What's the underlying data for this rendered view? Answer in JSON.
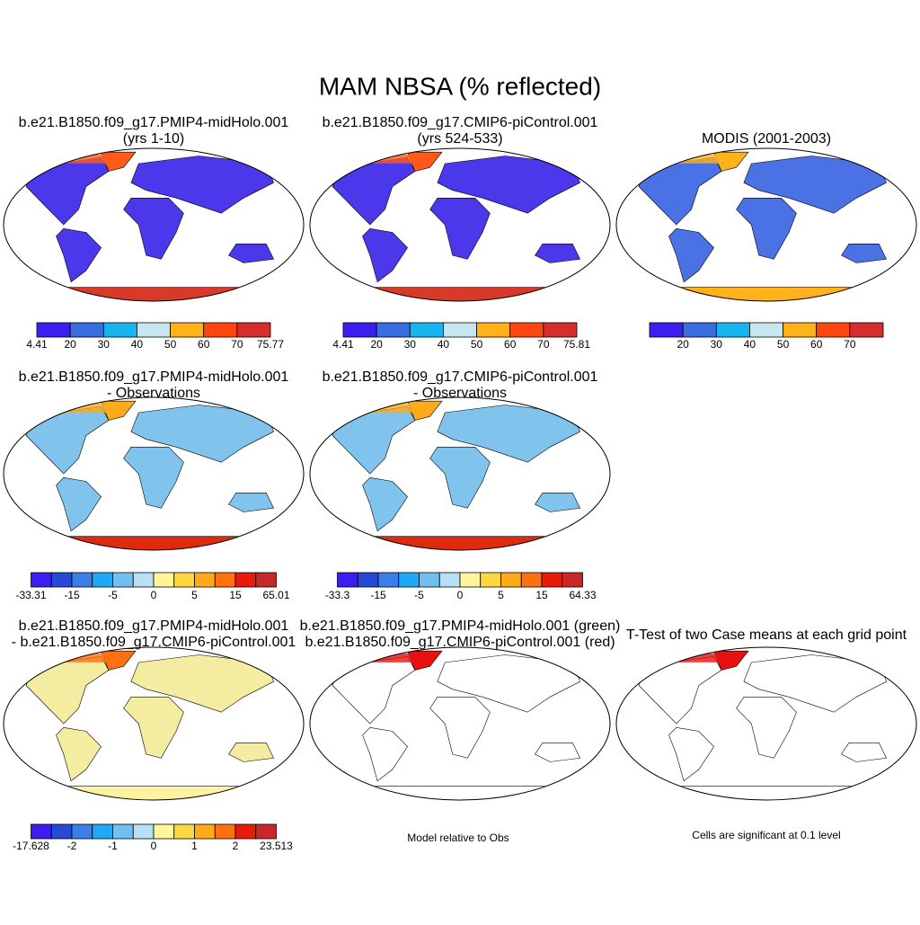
{
  "title": "MAM NBSA (% reflected)",
  "panels": [
    {
      "title": [
        "b.e21.B1850.f09_g17.PMIP4-midHolo.001",
        "(yrs 1-10)"
      ],
      "colorbar": {
        "colors": [
          "#3a1ff0",
          "#3a6ee0",
          "#18b4f0",
          "#c8e6f2",
          "#ffb21a",
          "#ff4510",
          "#d62d2d"
        ],
        "labels": [
          "4.41",
          "20",
          "30",
          "40",
          "50",
          "60",
          "70",
          "75.77"
        ]
      }
    },
    {
      "title": [
        "b.e21.B1850.f09_g17.CMIP6-piControl.001",
        "(yrs 524-533)"
      ],
      "colorbar": {
        "colors": [
          "#3a1ff0",
          "#3a6ee0",
          "#18b4f0",
          "#c8e6f2",
          "#ffb21a",
          "#ff4510",
          "#d62d2d"
        ],
        "labels": [
          "4.41",
          "20",
          "30",
          "40",
          "50",
          "60",
          "70",
          "75.81"
        ]
      }
    },
    {
      "title": [
        "MODIS (2001-2003)"
      ],
      "colorbar": {
        "colors": [
          "#3a1ff0",
          "#3a6ee0",
          "#18b4f0",
          "#c8e6f2",
          "#ffb21a",
          "#ff4510",
          "#d62d2d"
        ],
        "labels": [
          null,
          "20",
          "30",
          "40",
          "50",
          "60",
          "70",
          null
        ]
      }
    },
    {
      "title": [
        "b.e21.B1850.f09_g17.PMIP4-midHolo.001",
        "- Observations"
      ],
      "colorbar": {
        "colors": [
          "#3a1ff0",
          "#2848d8",
          "#3a7ee8",
          "#1ea8f5",
          "#70c0f0",
          "#b8e0f4",
          "#fff59a",
          "#ffd840",
          "#ffaa1a",
          "#ff7010",
          "#e81a0a",
          "#c82828"
        ],
        "labels": [
          "-33.31",
          null,
          "-15",
          null,
          "-5",
          null,
          "0",
          null,
          "5",
          null,
          "15",
          null,
          "65.01"
        ]
      }
    },
    {
      "title": [
        "b.e21.B1850.f09_g17.CMIP6-piControl.001",
        "- Observations"
      ],
      "colorbar": {
        "colors": [
          "#3a1ff0",
          "#2848d8",
          "#3a7ee8",
          "#1ea8f5",
          "#70c0f0",
          "#b8e0f4",
          "#fff59a",
          "#ffd840",
          "#ffaa1a",
          "#ff7010",
          "#e81a0a",
          "#c82828"
        ],
        "labels": [
          "-33.3",
          null,
          "-15",
          null,
          "-5",
          null,
          "0",
          null,
          "5",
          null,
          "15",
          null,
          "64.33"
        ]
      }
    },
    {
      "title": [
        "b.e21.B1850.f09_g17.PMIP4-midHolo.001",
        "- b.e21.B1850.f09_g17.CMIP6-piControl.001"
      ],
      "colorbar": {
        "colors": [
          "#3a1ff0",
          "#2848d8",
          "#3a7ee8",
          "#1ea8f5",
          "#70c0f0",
          "#b8e0f4",
          "#fff59a",
          "#ffd840",
          "#ffaa1a",
          "#ff7010",
          "#e81a0a",
          "#c82828"
        ],
        "labels": [
          "-17.628",
          null,
          "-2",
          null,
          "-1",
          null,
          "0",
          null,
          "1",
          null,
          "2",
          null,
          "23.513"
        ]
      }
    },
    {
      "title": [
        "b.e21.B1850.f09_g17.PMIP4-midHolo.001 (green)",
        "b.e21.B1850.f09_g17.CMIP6-piControl.001 (red)"
      ],
      "note": "Model relative to Obs"
    },
    {
      "title": [
        "T-Test of two Case means at each grid point"
      ],
      "note": "Cells are significant at 0.1 level"
    }
  ]
}
